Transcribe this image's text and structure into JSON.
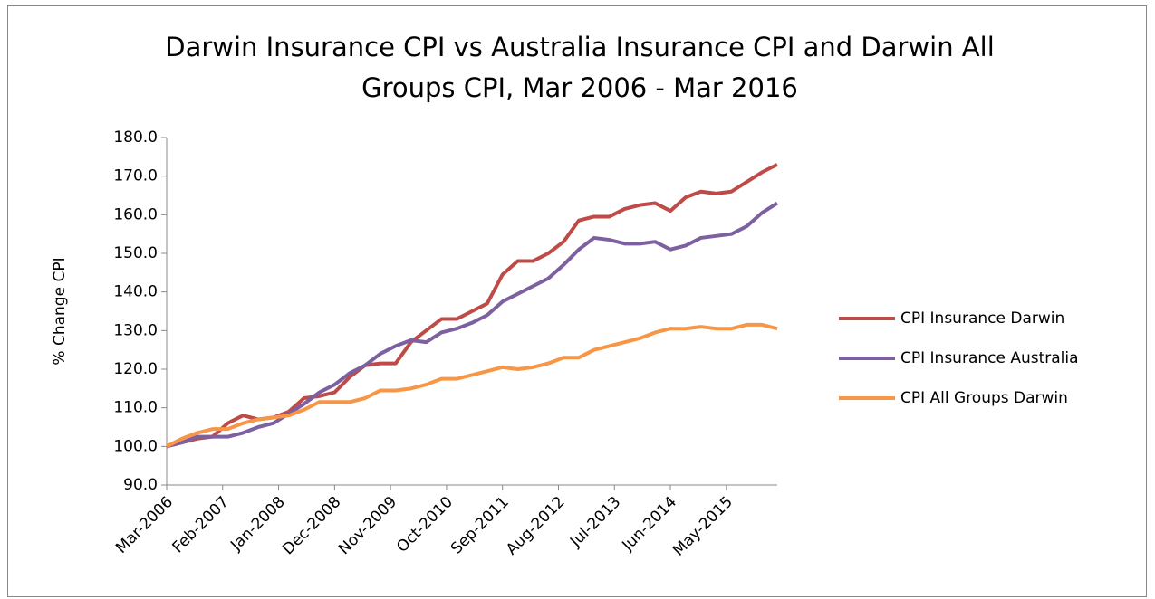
{
  "chart_data": {
    "type": "line",
    "title": "Darwin Insurance CPI vs Australia  Insurance CPI and Darwin All Groups CPI, Mar 2006 - Mar 2016",
    "y_label": "% Change CPI",
    "x": [
      0,
      3,
      6,
      9,
      12,
      15,
      18,
      21,
      24,
      27,
      30,
      33,
      36,
      39,
      42,
      45,
      48,
      51,
      54,
      57,
      60,
      63,
      66,
      69,
      72,
      75,
      78,
      81,
      84,
      87,
      90,
      93,
      96,
      99,
      102,
      105,
      108,
      111,
      114,
      117,
      120
    ],
    "xlim": [
      0,
      120
    ],
    "xticks": [
      {
        "value": 0,
        "label": "Mar-2006"
      },
      {
        "value": 11,
        "label": "Feb-2007"
      },
      {
        "value": 22,
        "label": "Jan-2008"
      },
      {
        "value": 33,
        "label": "Dec-2008"
      },
      {
        "value": 44,
        "label": "Nov-2009"
      },
      {
        "value": 55,
        "label": "Oct-2010"
      },
      {
        "value": 66,
        "label": "Sep-2011"
      },
      {
        "value": 77,
        "label": "Aug-2012"
      },
      {
        "value": 88,
        "label": "Jul-2013"
      },
      {
        "value": 99,
        "label": "Jun-2014"
      },
      {
        "value": 110,
        "label": "May-2015"
      }
    ],
    "ylim": [
      90,
      180
    ],
    "yticks": [
      {
        "value": 90,
        "label": "90.0"
      },
      {
        "value": 100,
        "label": "100.0"
      },
      {
        "value": 110,
        "label": "110.0"
      },
      {
        "value": 120,
        "label": "120.0"
      },
      {
        "value": 130,
        "label": "130.0"
      },
      {
        "value": 140,
        "label": "140.0"
      },
      {
        "value": 150,
        "label": "150.0"
      },
      {
        "value": 160,
        "label": "160.0"
      },
      {
        "value": 170,
        "label": "170.0"
      },
      {
        "value": 180,
        "label": "180.0"
      }
    ],
    "grid": false,
    "legend": "right",
    "series": [
      {
        "name": "CPI Insurance Darwin",
        "color": "#be4b48",
        "values": [
          100,
          101,
          102,
          102.5,
          106,
          108,
          107,
          107.5,
          109,
          112.5,
          113,
          114,
          118,
          121,
          121.5,
          121.5,
          127,
          130,
          133,
          133,
          135,
          137,
          144.5,
          148,
          148,
          150,
          153,
          158.5,
          159.5,
          159.5,
          161.5,
          162.5,
          163,
          161,
          164.5,
          166,
          165.5,
          166,
          168.5,
          171,
          173
        ]
      },
      {
        "name": "CPI Insurance Australia",
        "color": "#7d60a0",
        "values": [
          100,
          101,
          102.5,
          102.5,
          102.5,
          103.5,
          105,
          106,
          108.5,
          111,
          114,
          116,
          119,
          121,
          124,
          126,
          127.5,
          127,
          129.5,
          130.5,
          132,
          134,
          137.5,
          139.5,
          141.5,
          143.5,
          147,
          151,
          154,
          153.5,
          152.5,
          152.5,
          153,
          151,
          152,
          154,
          154.5,
          155,
          157,
          160.5,
          163
        ]
      },
      {
        "name": "CPI All Groups Darwin",
        "color": "#f79646",
        "values": [
          100,
          102,
          103.5,
          104.5,
          104.5,
          106,
          107,
          107.5,
          108,
          109.5,
          111.5,
          111.5,
          111.5,
          112.5,
          114.5,
          114.5,
          115,
          116,
          117.5,
          117.5,
          118.5,
          119.5,
          120.5,
          120,
          120.5,
          121.5,
          123,
          123,
          125,
          126,
          127,
          128,
          129.5,
          130.5,
          130.5,
          131,
          130.5,
          130.5,
          131.5,
          131.5,
          130.5
        ]
      }
    ]
  }
}
